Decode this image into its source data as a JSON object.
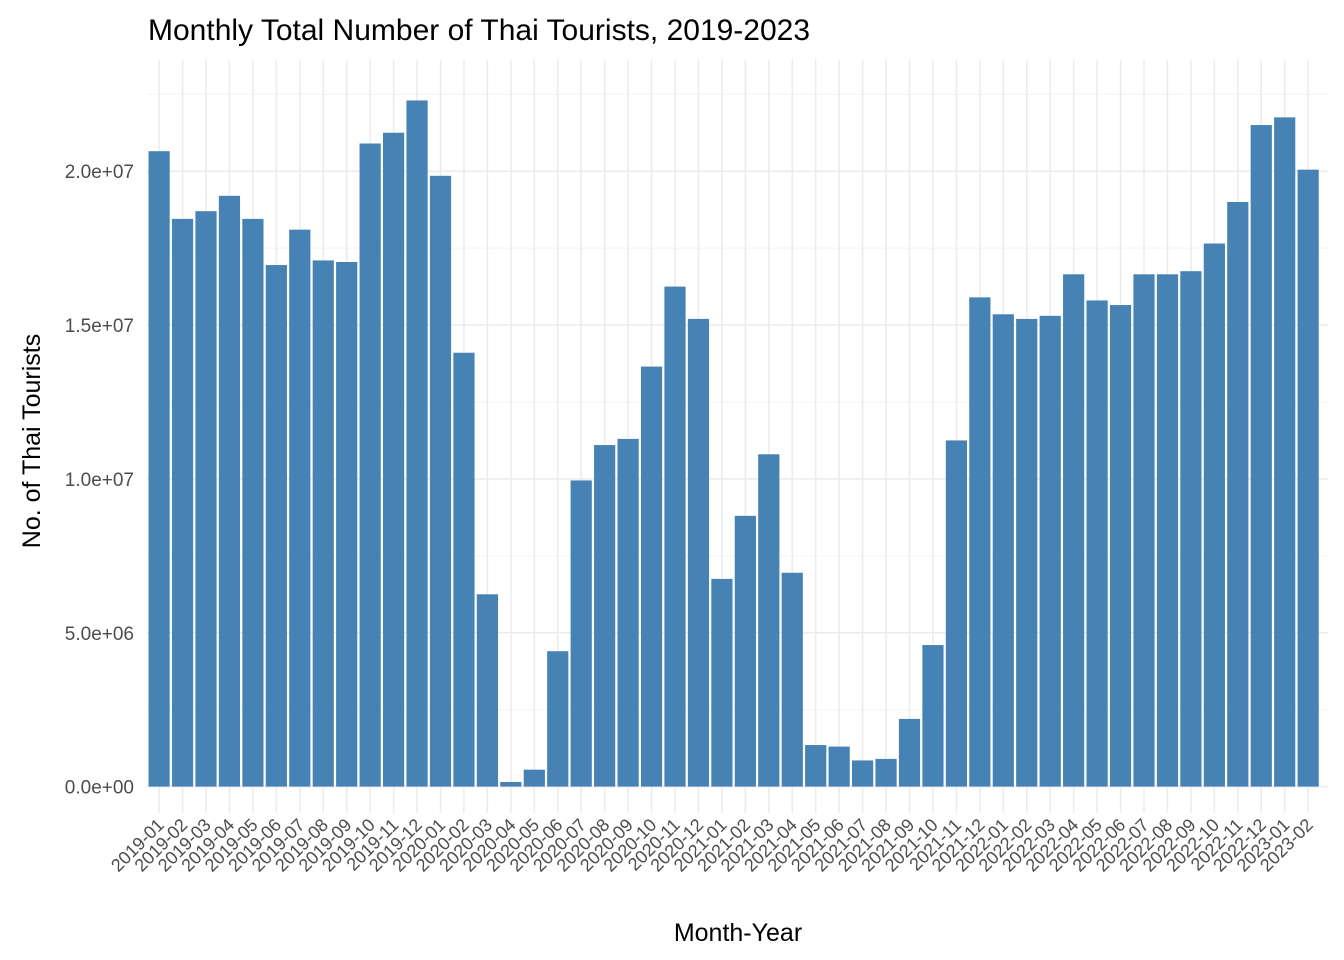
{
  "chart_data": {
    "type": "bar",
    "title": "Monthly Total Number of Thai Tourists, 2019-2023",
    "xlabel": "Month-Year",
    "ylabel": "No. of Thai Tourists",
    "ylim": [
      0,
      22500000
    ],
    "yticks": [
      0,
      5000000,
      10000000,
      15000000,
      20000000
    ],
    "ytick_labels": [
      "0.0e+00",
      "5.0e+06",
      "1.0e+07",
      "1.5e+07",
      "2.0e+07"
    ],
    "grid": true,
    "bar_color": "#4682B4",
    "categories": [
      "2019-01",
      "2019-02",
      "2019-03",
      "2019-04",
      "2019-05",
      "2019-06",
      "2019-07",
      "2019-08",
      "2019-09",
      "2019-10",
      "2019-11",
      "2019-12",
      "2020-01",
      "2020-02",
      "2020-03",
      "2020-04",
      "2020-05",
      "2020-06",
      "2020-07",
      "2020-08",
      "2020-09",
      "2020-10",
      "2020-11",
      "2020-12",
      "2021-01",
      "2021-02",
      "2021-03",
      "2021-04",
      "2021-05",
      "2021-06",
      "2021-07",
      "2021-08",
      "2021-09",
      "2021-10",
      "2021-11",
      "2021-12",
      "2022-01",
      "2022-02",
      "2022-03",
      "2022-04",
      "2022-05",
      "2022-06",
      "2022-07",
      "2022-08",
      "2022-09",
      "2022-10",
      "2022-11",
      "2022-12",
      "2023-01",
      "2023-02"
    ],
    "values": [
      20650000,
      18450000,
      18700000,
      19200000,
      18450000,
      16950000,
      18100000,
      17100000,
      17050000,
      20900000,
      21250000,
      22300000,
      19850000,
      14100000,
      6250000,
      150000,
      550000,
      4400000,
      9950000,
      11100000,
      11300000,
      13650000,
      16250000,
      15200000,
      6750000,
      8800000,
      10800000,
      6950000,
      1350000,
      1300000,
      850000,
      900000,
      2200000,
      4600000,
      11250000,
      15900000,
      15350000,
      15200000,
      15300000,
      16650000,
      15800000,
      15650000,
      16650000,
      16650000,
      16750000,
      17650000,
      19000000,
      21500000,
      21750000,
      20050000
    ]
  }
}
